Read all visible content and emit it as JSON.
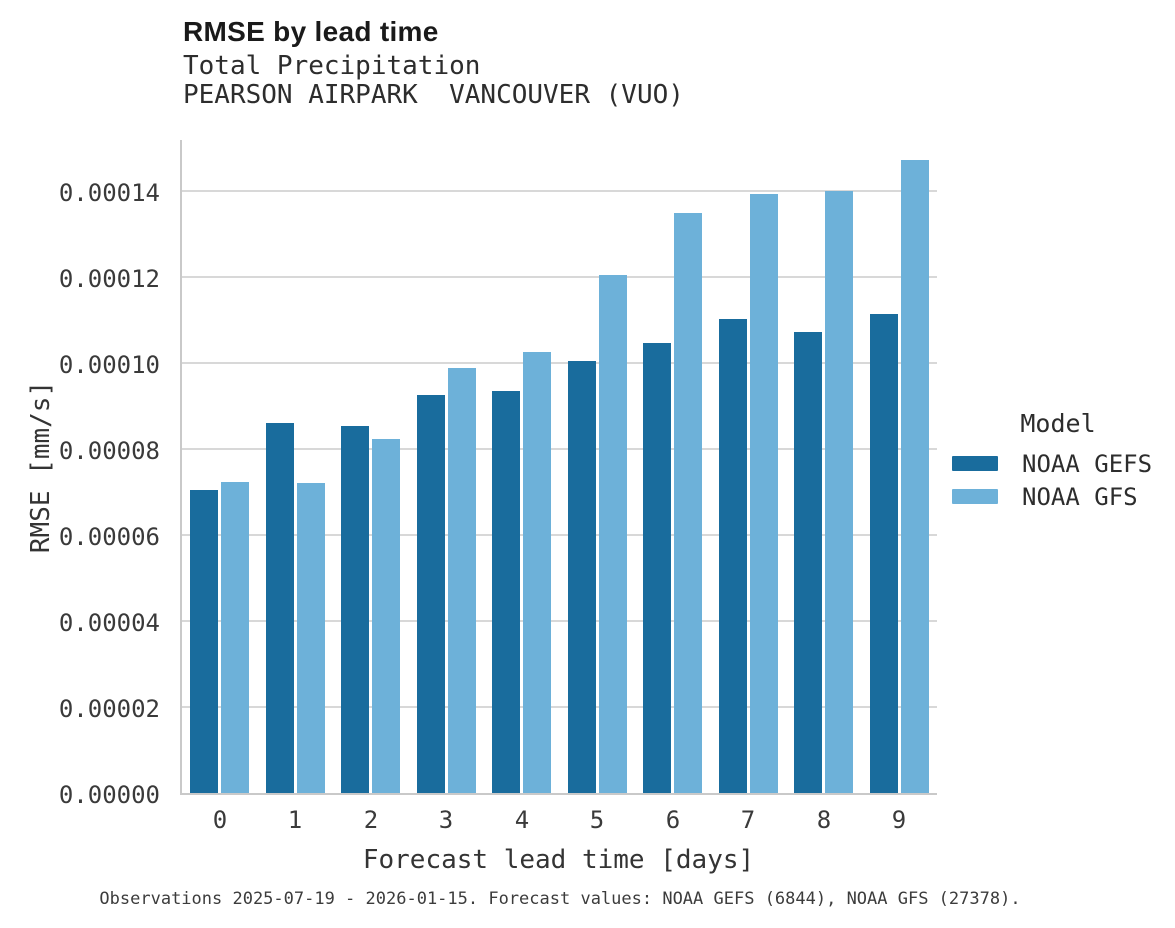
{
  "header": {
    "title": "RMSE by lead time",
    "subtitle": "Total Precipitation",
    "station": "PEARSON AIRPARK  VANCOUVER (VUO)"
  },
  "chart_data": {
    "type": "bar",
    "title": "RMSE by lead time",
    "subtitle": "Total Precipitation",
    "station": "PEARSON AIRPARK  VANCOUVER (VUO)",
    "categories": [
      0,
      1,
      2,
      3,
      4,
      5,
      6,
      7,
      8,
      9
    ],
    "series": [
      {
        "name": "NOAA GEFS",
        "color": "#196c9d",
        "values": [
          7.05e-05,
          8.6e-05,
          8.53e-05,
          9.26e-05,
          9.34e-05,
          0.0001004,
          0.0001046,
          0.0001103,
          0.0001072,
          0.0001114
        ]
      },
      {
        "name": "NOAA GFS",
        "color": "#6db1d9",
        "values": [
          7.24e-05,
          7.2e-05,
          8.22e-05,
          9.89e-05,
          0.0001026,
          0.0001204,
          0.0001349,
          0.0001393,
          0.0001399,
          0.0001471
        ]
      }
    ],
    "xlabel": "Forecast lead time [days]",
    "ylabel": "RMSE [mm/s]",
    "ylim": [
      0,
      0.0001523
    ],
    "yticks": [
      0.0,
      2e-05,
      4e-05,
      6e-05,
      8e-05,
      0.0001,
      0.00012,
      0.00014
    ],
    "ytick_labels": [
      "0.00000",
      "0.00002",
      "0.00004",
      "0.00006",
      "0.00008",
      "0.00010",
      "0.00012",
      "0.00014"
    ],
    "legend_title": "Model",
    "legend_position": "right",
    "grid": "horizontal"
  },
  "caption": "Observations 2025-07-19 - 2026-01-15. Forecast values: NOAA GEFS (6844), NOAA GFS (27378)."
}
